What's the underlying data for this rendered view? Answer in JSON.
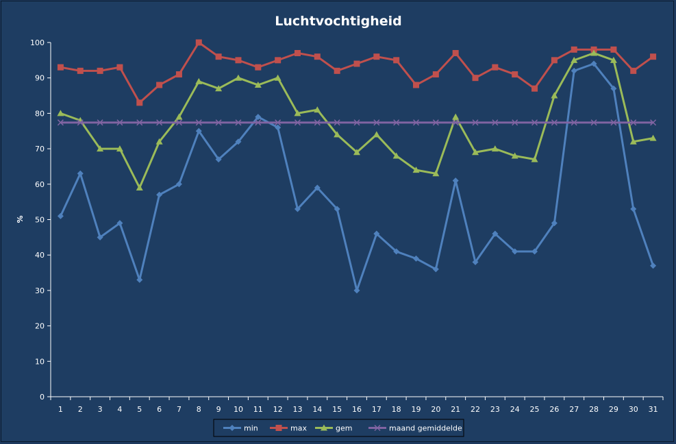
{
  "chart_data": {
    "type": "line",
    "title": "Luchtvochtigheid",
    "xlabel": "",
    "ylabel": "%",
    "ylim": [
      0,
      100
    ],
    "yticks": [
      0,
      10,
      20,
      30,
      40,
      50,
      60,
      70,
      80,
      90,
      100
    ],
    "categories": [
      "1",
      "2",
      "3",
      "4",
      "5",
      "6",
      "7",
      "8",
      "9",
      "10",
      "11",
      "12",
      "13",
      "14",
      "15",
      "16",
      "17",
      "18",
      "19",
      "20",
      "21",
      "22",
      "23",
      "24",
      "25",
      "26",
      "27",
      "28",
      "29",
      "30",
      "31"
    ],
    "grid": false,
    "legend_position": "bottom",
    "series": [
      {
        "name": "min",
        "color": "#4f81bd",
        "marker": "diamond",
        "values": [
          51,
          63,
          45,
          49,
          33,
          57,
          60,
          75,
          67,
          72,
          79,
          76,
          53,
          59,
          53,
          30,
          46,
          41,
          39,
          36,
          61,
          38,
          46,
          41,
          41,
          49,
          92,
          94,
          87,
          53,
          37
        ]
      },
      {
        "name": "max",
        "color": "#c0504d",
        "marker": "square",
        "values": [
          93,
          92,
          92,
          93,
          83,
          88,
          91,
          100,
          96,
          95,
          93,
          95,
          97,
          96,
          92,
          94,
          96,
          95,
          88,
          91,
          97,
          90,
          93,
          91,
          87,
          95,
          98,
          98,
          98,
          92,
          96
        ]
      },
      {
        "name": "gem",
        "color": "#9bbb59",
        "marker": "triangle",
        "values": [
          80,
          78,
          70,
          70,
          59,
          72,
          79,
          89,
          87,
          90,
          88,
          90,
          80,
          81,
          74,
          69,
          74,
          68,
          64,
          63,
          79,
          69,
          70,
          68,
          67,
          85,
          95,
          97,
          95,
          72,
          73
        ]
      },
      {
        "name": "maand gemiddelde",
        "color": "#8064a2",
        "marker": "x",
        "values": [
          77.4,
          77.4,
          77.4,
          77.4,
          77.4,
          77.4,
          77.4,
          77.4,
          77.4,
          77.4,
          77.4,
          77.4,
          77.4,
          77.4,
          77.4,
          77.4,
          77.4,
          77.4,
          77.4,
          77.4,
          77.4,
          77.4,
          77.4,
          77.4,
          77.4,
          77.4,
          77.4,
          77.4,
          77.4,
          77.4,
          77.4
        ]
      }
    ]
  }
}
